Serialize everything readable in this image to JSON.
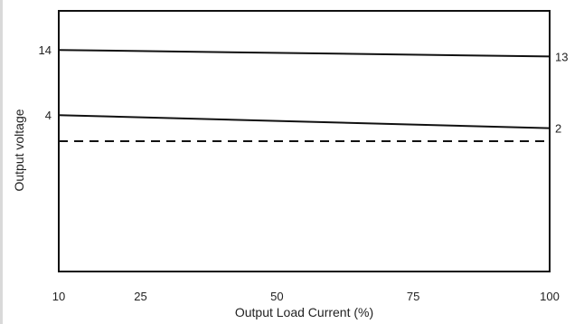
{
  "chart_data": {
    "type": "line",
    "title": "",
    "xlabel": "Output Load Current (%)",
    "ylabel": "Output voltage",
    "x_ticks": [
      10,
      25,
      50,
      75,
      100
    ],
    "xlim": [
      10,
      100
    ],
    "y_ticks_left": [
      {
        "label": "14",
        "y": 14
      },
      {
        "label": "4",
        "y": 4
      }
    ],
    "ylim": [
      -20,
      20
    ],
    "grid": false,
    "legend": "none",
    "series": [
      {
        "x": [
          10,
          100
        ],
        "y": [
          14,
          13
        ],
        "style": "solid",
        "end_label": "13"
      },
      {
        "x": [
          10,
          100
        ],
        "y": [
          4,
          2
        ],
        "style": "solid",
        "end_label": "2"
      },
      {
        "x": [
          10,
          100
        ],
        "y": [
          0,
          0
        ],
        "style": "dashed",
        "end_label": ""
      }
    ]
  }
}
